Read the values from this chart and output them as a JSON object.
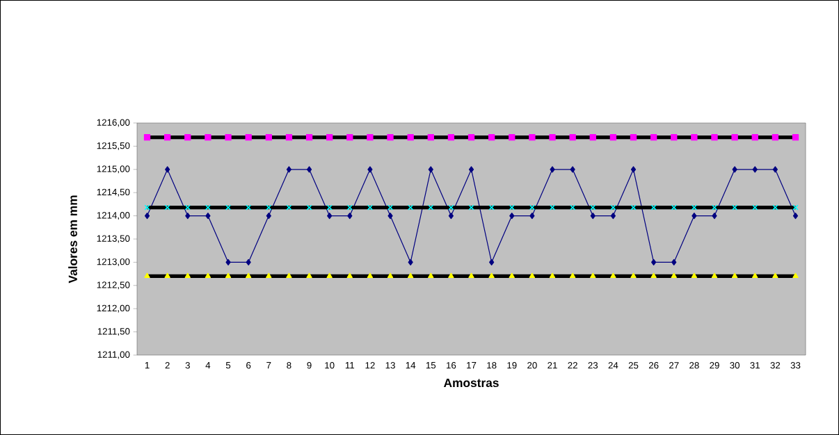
{
  "chart_data": {
    "type": "line",
    "xlabel": "Amostras",
    "ylabel": "Valores em mm",
    "categories": [
      "1",
      "2",
      "3",
      "4",
      "5",
      "6",
      "7",
      "8",
      "9",
      "10",
      "11",
      "12",
      "13",
      "14",
      "15",
      "16",
      "17",
      "18",
      "19",
      "20",
      "21",
      "22",
      "23",
      "24",
      "25",
      "26",
      "27",
      "28",
      "29",
      "30",
      "31",
      "32",
      "33"
    ],
    "series": [
      {
        "color": "#000080",
        "marker": "diamond",
        "values": [
          1214,
          1215,
          1214,
          1214,
          1213,
          1213,
          1214,
          1215,
          1215,
          1214,
          1214,
          1215,
          1214,
          1213,
          1215,
          1214,
          1215,
          1213,
          1214,
          1214,
          1215,
          1215,
          1214,
          1214,
          1215,
          1213,
          1213,
          1214,
          1214,
          1215,
          1215,
          1215,
          1214
        ]
      },
      {
        "color": "#ff00ff",
        "marker": "square",
        "values": [
          1215.69,
          1215.69,
          1215.69,
          1215.69,
          1215.69,
          1215.69,
          1215.69,
          1215.69,
          1215.69,
          1215.69,
          1215.69,
          1215.69,
          1215.69,
          1215.69,
          1215.69,
          1215.69,
          1215.69,
          1215.69,
          1215.69,
          1215.69,
          1215.69,
          1215.69,
          1215.69,
          1215.69,
          1215.69,
          1215.69,
          1215.69,
          1215.69,
          1215.69,
          1215.69,
          1215.69,
          1215.69,
          1215.69
        ]
      },
      {
        "color": "#00ffff",
        "marker": "cross",
        "values": [
          1214.18,
          1214.18,
          1214.18,
          1214.18,
          1214.18,
          1214.18,
          1214.18,
          1214.18,
          1214.18,
          1214.18,
          1214.18,
          1214.18,
          1214.18,
          1214.18,
          1214.18,
          1214.18,
          1214.18,
          1214.18,
          1214.18,
          1214.18,
          1214.18,
          1214.18,
          1214.18,
          1214.18,
          1214.18,
          1214.18,
          1214.18,
          1214.18,
          1214.18,
          1214.18,
          1214.18,
          1214.18,
          1214.18
        ]
      },
      {
        "color": "#ffff00",
        "marker": "triangle",
        "values": [
          1212.7,
          1212.7,
          1212.7,
          1212.7,
          1212.7,
          1212.7,
          1212.7,
          1212.7,
          1212.7,
          1212.7,
          1212.7,
          1212.7,
          1212.7,
          1212.7,
          1212.7,
          1212.7,
          1212.7,
          1212.7,
          1212.7,
          1212.7,
          1212.7,
          1212.7,
          1212.7,
          1212.7,
          1212.7,
          1212.7,
          1212.7,
          1212.7,
          1212.7,
          1212.7,
          1212.7,
          1212.7,
          1212.7
        ]
      }
    ],
    "ylim": [
      1211,
      1216
    ],
    "yticks": [
      {
        "value": 1211,
        "label": "1211,00"
      },
      {
        "value": 1211.5,
        "label": "1211,50"
      },
      {
        "value": 1212,
        "label": "1212,00"
      },
      {
        "value": 1212.5,
        "label": "1212,50"
      },
      {
        "value": 1213,
        "label": "1213,00"
      },
      {
        "value": 1213.5,
        "label": "1213,50"
      },
      {
        "value": 1214,
        "label": "1214,00"
      },
      {
        "value": 1214.5,
        "label": "1214,50"
      },
      {
        "value": 1215,
        "label": "1215,00"
      },
      {
        "value": 1215.5,
        "label": "1215,50"
      },
      {
        "value": 1216,
        "label": "1216,00"
      }
    ],
    "grid": false
  }
}
